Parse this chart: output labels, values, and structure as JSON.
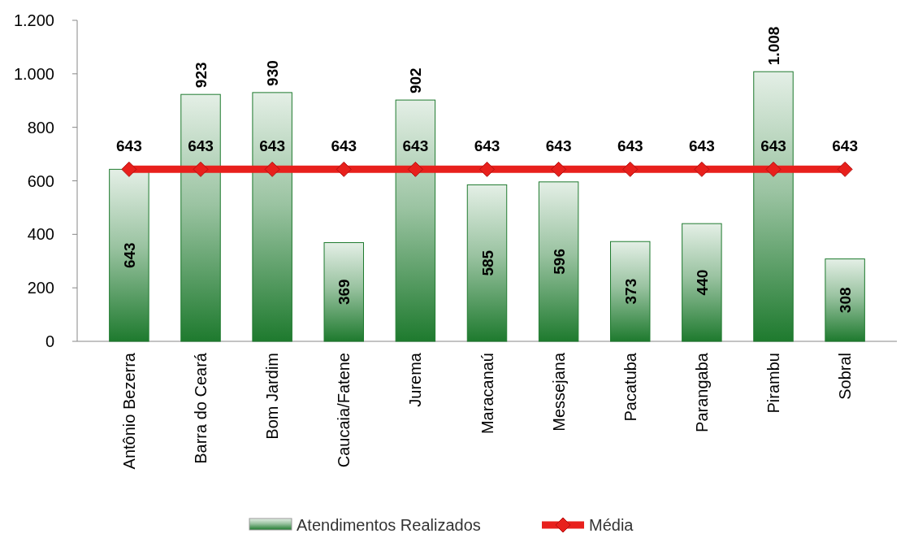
{
  "chart_data": {
    "type": "bar",
    "categories": [
      "Antônio Bezerra",
      "Barra do Ceará",
      "Bom Jardim",
      "Caucaia/Fatene",
      "Jurema",
      "Maracanaú",
      "Messejana",
      "Pacatuba",
      "Parangaba",
      "Pirambu",
      "Sobral"
    ],
    "series": [
      {
        "name": "Atendimentos Realizados",
        "color": "#1e7a2e",
        "values": [
          643,
          923,
          930,
          369,
          902,
          585,
          596,
          373,
          440,
          1008,
          308
        ],
        "value_labels": [
          "643",
          "923",
          "930",
          "369",
          "902",
          "585",
          "596",
          "373",
          "440",
          "1.008",
          "308"
        ]
      },
      {
        "name": "Média",
        "type": "line",
        "color": "#e8201c",
        "marker": "diamond",
        "values": [
          643,
          643,
          643,
          643,
          643,
          643,
          643,
          643,
          643,
          643,
          643
        ],
        "value_labels": [
          "643",
          "643",
          "643",
          "643",
          "643",
          "643",
          "643",
          "643",
          "643",
          "643",
          "643"
        ]
      }
    ],
    "ylim": [
      0,
      1200
    ],
    "yticks": [
      0,
      200,
      400,
      600,
      800,
      {
        "value": 1000,
        "label": "1.000"
      },
      {
        "value": 1200,
        "label": "1.200"
      }
    ],
    "grid": false,
    "legend": "bottom"
  }
}
